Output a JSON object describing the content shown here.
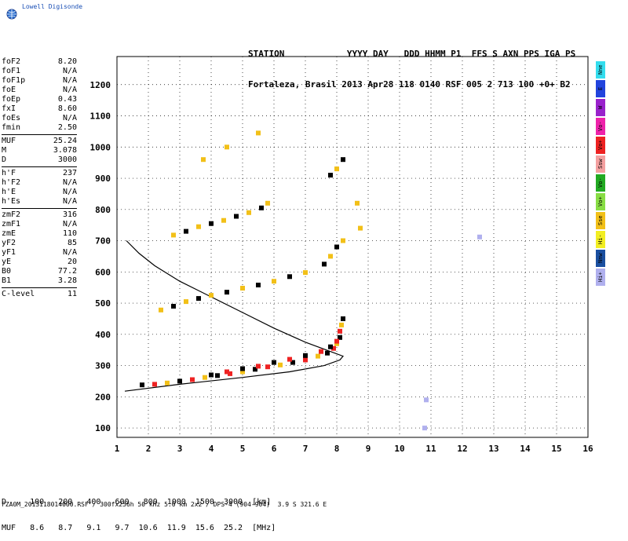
{
  "logo": {
    "text": "Lowell Digisonde"
  },
  "header": {
    "line1": "STATION            YYYY DAY   DDD HHMM P1  FFS S AXN PPS IGA PS",
    "line2": "Fortaleza, Brasil 2013 Apr28 118 0140 RSF 005 2 713 100 +0+ B2"
  },
  "params": [
    [
      {
        "label": "foF2",
        "value": "8.20"
      },
      {
        "label": "foF1",
        "value": "N/A"
      },
      {
        "label": "foF1p",
        "value": "N/A"
      },
      {
        "label": "foE",
        "value": "N/A"
      },
      {
        "label": "foEp",
        "value": "0.43"
      },
      {
        "label": "fxI",
        "value": "8.60"
      },
      {
        "label": "foEs",
        "value": "N/A"
      },
      {
        "label": "fmin",
        "value": "2.50"
      }
    ],
    [
      {
        "label": "MUF",
        "value": "25.24"
      },
      {
        "label": "M",
        "value": "3.078"
      },
      {
        "label": "D",
        "value": "3000"
      }
    ],
    [
      {
        "label": "h'F",
        "value": "237"
      },
      {
        "label": "h'F2",
        "value": "N/A"
      },
      {
        "label": "h'E",
        "value": "N/A"
      },
      {
        "label": "h'Es",
        "value": "N/A"
      }
    ],
    [
      {
        "label": "zmF2",
        "value": "316"
      },
      {
        "label": "zmF1",
        "value": "N/A"
      },
      {
        "label": "zmE",
        "value": "110"
      },
      {
        "label": "yF2",
        "value": "85"
      },
      {
        "label": "yF1",
        "value": "N/A"
      },
      {
        "label": "yE",
        "value": "20"
      },
      {
        "label": "B0",
        "value": "77.2"
      },
      {
        "label": "B1",
        "value": "3.28"
      }
    ],
    [
      {
        "label": "C-level",
        "value": "11"
      }
    ]
  ],
  "legend": [
    {
      "label": "Nne",
      "color": "#33ddee"
    },
    {
      "label": "E",
      "color": "#2244dd"
    },
    {
      "label": "W",
      "color": "#9922cc"
    },
    {
      "label": "Vo-",
      "color": "#ee22aa"
    },
    {
      "label": "Vo+",
      "color": "#ee2222"
    },
    {
      "label": "Ssw",
      "color": "#f4a0a0"
    },
    {
      "label": "Vo-",
      "color": "#22aa22"
    },
    {
      "label": "Vo+",
      "color": "#88dd44"
    },
    {
      "label": "Sse",
      "color": "#f2c018"
    },
    {
      "label": "Hi-",
      "color": "#f2ee22"
    },
    {
      "label": "Nnw",
      "color": "#1a4fa0"
    },
    {
      "label": "Hi+",
      "color": "#b0b0ee"
    }
  ],
  "chart_data": {
    "type": "scatter",
    "title": "",
    "xlabel": "",
    "ylabel": "",
    "xlim": [
      1,
      16
    ],
    "ylim": [
      70,
      1290
    ],
    "x_ticks": [
      1,
      2,
      3,
      4,
      5,
      6,
      7,
      8,
      9,
      10,
      11,
      12,
      13,
      14,
      15,
      16
    ],
    "y_ticks": [
      100,
      200,
      300,
      400,
      500,
      600,
      700,
      800,
      900,
      1000,
      1100,
      1200
    ],
    "grid": "dotted",
    "series": [
      {
        "trace": "o-trace-1st",
        "points": [
          [
            1.8,
            238
          ],
          [
            2.2,
            240
          ],
          [
            2.6,
            244
          ],
          [
            3.0,
            250
          ],
          [
            3.4,
            255
          ],
          [
            3.8,
            262
          ],
          [
            4.2,
            268
          ],
          [
            4.6,
            274
          ],
          [
            5.0,
            280
          ],
          [
            5.4,
            288
          ],
          [
            5.8,
            296
          ],
          [
            6.2,
            302
          ],
          [
            6.6,
            310
          ],
          [
            7.0,
            318
          ],
          [
            7.4,
            330
          ],
          [
            7.7,
            340
          ],
          [
            7.9,
            355
          ],
          [
            8.0,
            370
          ],
          [
            8.1,
            390
          ],
          [
            8.1,
            410
          ],
          [
            8.15,
            430
          ],
          [
            8.2,
            450
          ]
        ]
      },
      {
        "trace": "x-trace-1st",
        "points": [
          [
            4.0,
            270
          ],
          [
            4.5,
            280
          ],
          [
            5.0,
            290
          ],
          [
            5.5,
            298
          ],
          [
            6.0,
            310
          ],
          [
            6.5,
            320
          ],
          [
            7.0,
            332
          ],
          [
            7.5,
            345
          ],
          [
            7.8,
            360
          ],
          [
            8.0,
            378
          ]
        ]
      },
      {
        "trace": "2nd-hop",
        "points": [
          [
            2.4,
            478
          ],
          [
            2.8,
            490
          ],
          [
            3.2,
            505
          ],
          [
            3.6,
            515
          ],
          [
            4.0,
            525
          ],
          [
            4.5,
            535
          ],
          [
            5.0,
            548
          ],
          [
            5.5,
            558
          ],
          [
            6.0,
            570
          ],
          [
            6.5,
            585
          ],
          [
            7.0,
            598
          ],
          [
            7.6,
            625
          ],
          [
            7.8,
            650
          ],
          [
            8.0,
            680
          ],
          [
            8.2,
            700
          ]
        ]
      },
      {
        "trace": "3rd-hop",
        "points": [
          [
            2.8,
            718
          ],
          [
            3.2,
            730
          ],
          [
            3.6,
            745
          ],
          [
            4.0,
            755
          ],
          [
            4.4,
            765
          ],
          [
            4.8,
            778
          ],
          [
            5.2,
            790
          ],
          [
            5.6,
            805
          ],
          [
            5.8,
            820
          ],
          [
            7.8,
            910
          ],
          [
            8.0,
            930
          ],
          [
            8.2,
            960
          ]
        ]
      },
      {
        "trace": "isolated",
        "points": [
          [
            3.75,
            960
          ],
          [
            4.5,
            1000
          ],
          [
            5.5,
            1045
          ],
          [
            8.65,
            820
          ],
          [
            8.75,
            740
          ],
          [
            10.85,
            190
          ],
          [
            10.8,
            100
          ],
          [
            12.55,
            712
          ]
        ]
      }
    ],
    "profile": {
      "name": "",
      "points": [
        [
          1.25,
          218
        ],
        [
          3,
          240
        ],
        [
          5,
          262
        ],
        [
          6.5,
          280
        ],
        [
          7.6,
          300
        ],
        [
          8.1,
          318
        ],
        [
          8.2,
          330
        ],
        [
          7.8,
          345
        ],
        [
          7.0,
          375
        ],
        [
          6.0,
          420
        ],
        [
          5.0,
          470
        ],
        [
          4.0,
          520
        ],
        [
          3.0,
          570
        ],
        [
          2.2,
          620
        ],
        [
          1.7,
          660
        ],
        [
          1.3,
          700
        ]
      ]
    }
  },
  "bottom": {
    "line1": "D     100   200   400   600   800  1000  1500  3000  [km]",
    "line2": "MUF   8.6   8.7   9.1   9.7  10.6  11.9  15.6  25.2  [MHz]"
  },
  "footer": {
    "text": "FZA0M_2013118014000.RSF / 300fx256h 50 kHz 5.0 km 2x2 / DPS-4 (904-904)  3.9 S 321.6 E"
  }
}
